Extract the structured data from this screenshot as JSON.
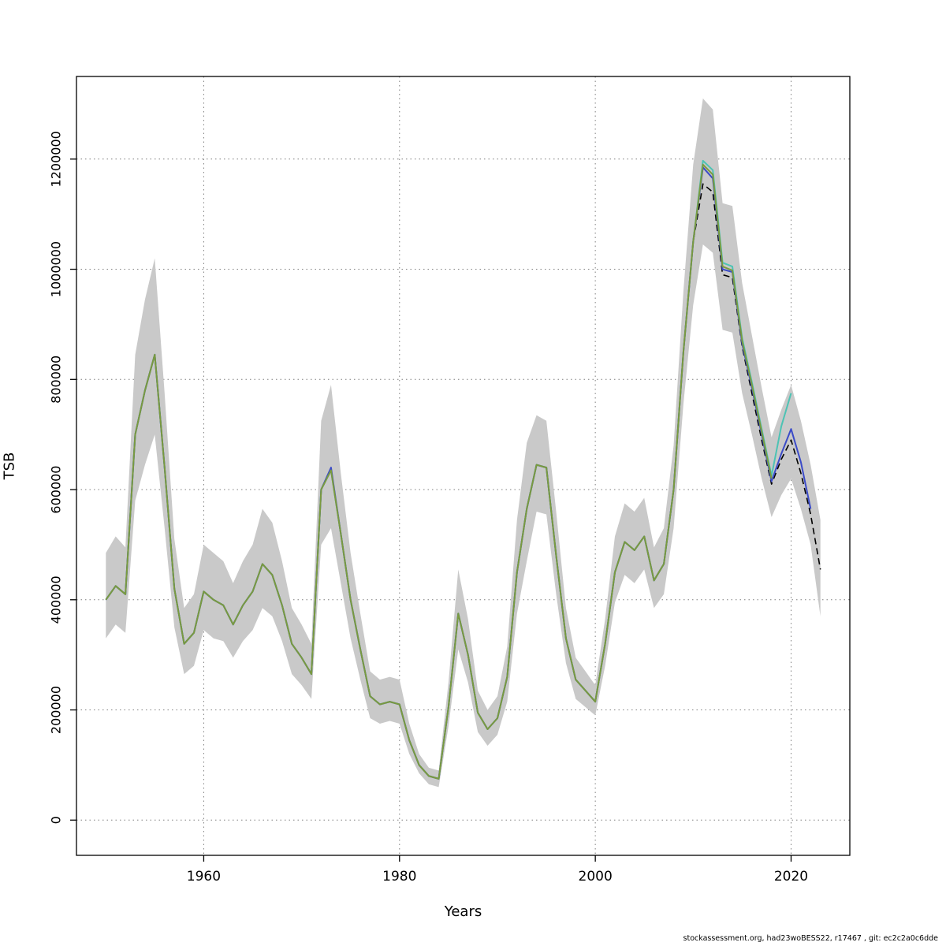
{
  "watermark": {
    "text": "stockassessment.org, had23woBESS22, r17467 , git: ec2c2a0c6dde"
  },
  "chart_data": {
    "type": "line",
    "title": "",
    "xlabel": "Years",
    "ylabel": "TSB",
    "grid": "dotted",
    "legend": "none",
    "xticks": [
      1960,
      1980,
      2000,
      2020
    ],
    "yticks": [
      0,
      200000,
      400000,
      600000,
      800000,
      1000000,
      1200000
    ],
    "xlim": [
      1947,
      2026
    ],
    "ylim": [
      -64000,
      1350000
    ],
    "x": [
      1950,
      1951,
      1952,
      1953,
      1954,
      1955,
      1956,
      1957,
      1958,
      1959,
      1960,
      1961,
      1962,
      1963,
      1964,
      1965,
      1966,
      1967,
      1968,
      1969,
      1970,
      1971,
      1972,
      1973,
      1974,
      1975,
      1976,
      1977,
      1978,
      1979,
      1980,
      1981,
      1982,
      1983,
      1984,
      1985,
      1986,
      1987,
      1988,
      1989,
      1990,
      1991,
      1992,
      1993,
      1994,
      1995,
      1996,
      1997,
      1998,
      1999,
      2000,
      2001,
      2002,
      2003,
      2004,
      2005,
      2006,
      2007,
      2008,
      2009,
      2010,
      2011,
      2012,
      2013,
      2014,
      2015,
      2016,
      2017,
      2018,
      2019,
      2020,
      2021,
      2022,
      2023
    ],
    "band": {
      "name": "confidence-interval",
      "color": "#c9c9c9",
      "upper": [
        485000,
        515000,
        495000,
        845000,
        945000,
        1020000,
        775000,
        510000,
        385000,
        410000,
        500000,
        485000,
        470000,
        430000,
        470000,
        500000,
        565000,
        540000,
        470000,
        385000,
        355000,
        320000,
        725000,
        790000,
        630000,
        485000,
        375000,
        270000,
        255000,
        260000,
        255000,
        175000,
        120000,
        95000,
        90000,
        250000,
        455000,
        365000,
        235000,
        200000,
        225000,
        315000,
        545000,
        685000,
        735000,
        725000,
        560000,
        385000,
        295000,
        270000,
        245000,
        365000,
        515000,
        575000,
        560000,
        585000,
        495000,
        530000,
        680000,
        960000,
        1190000,
        1310000,
        1290000,
        1120000,
        1115000,
        975000,
        880000,
        785000,
        695000,
        745000,
        790000,
        725000,
        645000,
        545000
      ],
      "lower": [
        330000,
        355000,
        340000,
        580000,
        645000,
        700000,
        530000,
        350000,
        265000,
        280000,
        345000,
        330000,
        325000,
        295000,
        325000,
        345000,
        385000,
        370000,
        325000,
        265000,
        245000,
        220000,
        500000,
        530000,
        430000,
        330000,
        255000,
        185000,
        175000,
        180000,
        175000,
        120000,
        85000,
        65000,
        60000,
        170000,
        310000,
        250000,
        160000,
        135000,
        155000,
        215000,
        375000,
        470000,
        560000,
        555000,
        410000,
        285000,
        220000,
        205000,
        190000,
        280000,
        395000,
        445000,
        430000,
        455000,
        385000,
        410000,
        530000,
        755000,
        935000,
        1045000,
        1030000,
        890000,
        885000,
        775000,
        700000,
        620000,
        550000,
        590000,
        620000,
        565000,
        500000,
        370000
      ]
    },
    "series": [
      {
        "name": "base-run-black-dashed",
        "color": "#000000",
        "dash": "dashed",
        "width": 1.6,
        "values": [
          400000,
          425000,
          410000,
          700000,
          780000,
          845000,
          640000,
          420000,
          320000,
          340000,
          415000,
          400000,
          390000,
          355000,
          390000,
          415000,
          465000,
          445000,
          390000,
          320000,
          295000,
          265000,
          600000,
          635000,
          520000,
          400000,
          310000,
          225000,
          210000,
          215000,
          210000,
          145000,
          100000,
          80000,
          75000,
          205000,
          375000,
          300000,
          195000,
          165000,
          185000,
          260000,
          450000,
          565000,
          645000,
          640000,
          480000,
          330000,
          255000,
          235000,
          215000,
          320000,
          450000,
          505000,
          490000,
          515000,
          435000,
          465000,
          600000,
          850000,
          1050000,
          1155000,
          1140000,
          990000,
          985000,
          860000,
          775000,
          690000,
          610000,
          655000,
          690000,
          630000,
          555000,
          455000
        ]
      },
      {
        "name": "run-teal",
        "color": "#4dc3b4",
        "dash": "solid",
        "width": 2,
        "values": [
          400000,
          425000,
          410000,
          700000,
          780000,
          845000,
          640000,
          420000,
          320000,
          340000,
          415000,
          400000,
          390000,
          355000,
          390000,
          415000,
          465000,
          445000,
          390000,
          320000,
          295000,
          265000,
          600000,
          635000,
          520000,
          400000,
          310000,
          225000,
          210000,
          215000,
          210000,
          145000,
          100000,
          80000,
          75000,
          205000,
          375000,
          300000,
          195000,
          165000,
          185000,
          260000,
          450000,
          565000,
          645000,
          640000,
          480000,
          330000,
          255000,
          235000,
          215000,
          320000,
          450000,
          505000,
          490000,
          515000,
          435000,
          465000,
          600000,
          850000,
          1050000,
          1197000,
          1180000,
          1012000,
          1005000,
          875000,
          795000,
          710000,
          625000,
          715000,
          775000,
          null,
          null,
          null
        ]
      },
      {
        "name": "run-blue",
        "color": "#3b4bc8",
        "dash": "solid",
        "width": 2,
        "values": [
          400000,
          425000,
          410000,
          700000,
          780000,
          845000,
          640000,
          420000,
          320000,
          340000,
          415000,
          400000,
          390000,
          355000,
          390000,
          415000,
          465000,
          445000,
          390000,
          320000,
          295000,
          265000,
          600000,
          640000,
          520000,
          400000,
          310000,
          225000,
          210000,
          215000,
          210000,
          145000,
          100000,
          80000,
          75000,
          205000,
          375000,
          300000,
          195000,
          165000,
          185000,
          260000,
          450000,
          565000,
          645000,
          640000,
          480000,
          330000,
          255000,
          235000,
          215000,
          320000,
          450000,
          505000,
          490000,
          515000,
          435000,
          465000,
          600000,
          850000,
          1050000,
          1185000,
          1165000,
          1000000,
          995000,
          865000,
          785000,
          700000,
          615000,
          665000,
          710000,
          650000,
          565000,
          null
        ]
      },
      {
        "name": "run-green",
        "color": "#7a9a3f",
        "dash": "solid",
        "width": 2,
        "values": [
          400000,
          425000,
          410000,
          700000,
          780000,
          845000,
          640000,
          420000,
          320000,
          340000,
          415000,
          400000,
          390000,
          355000,
          390000,
          415000,
          465000,
          445000,
          390000,
          320000,
          295000,
          265000,
          600000,
          635000,
          520000,
          400000,
          310000,
          225000,
          210000,
          215000,
          210000,
          145000,
          100000,
          80000,
          75000,
          205000,
          375000,
          300000,
          195000,
          165000,
          185000,
          260000,
          450000,
          565000,
          645000,
          640000,
          480000,
          330000,
          255000,
          235000,
          215000,
          320000,
          450000,
          505000,
          490000,
          515000,
          435000,
          465000,
          600000,
          850000,
          1050000,
          1190000,
          1172000,
          1005000,
          998000,
          870000,
          790000,
          705000,
          620000,
          null,
          null,
          null,
          null,
          null
        ]
      }
    ]
  }
}
